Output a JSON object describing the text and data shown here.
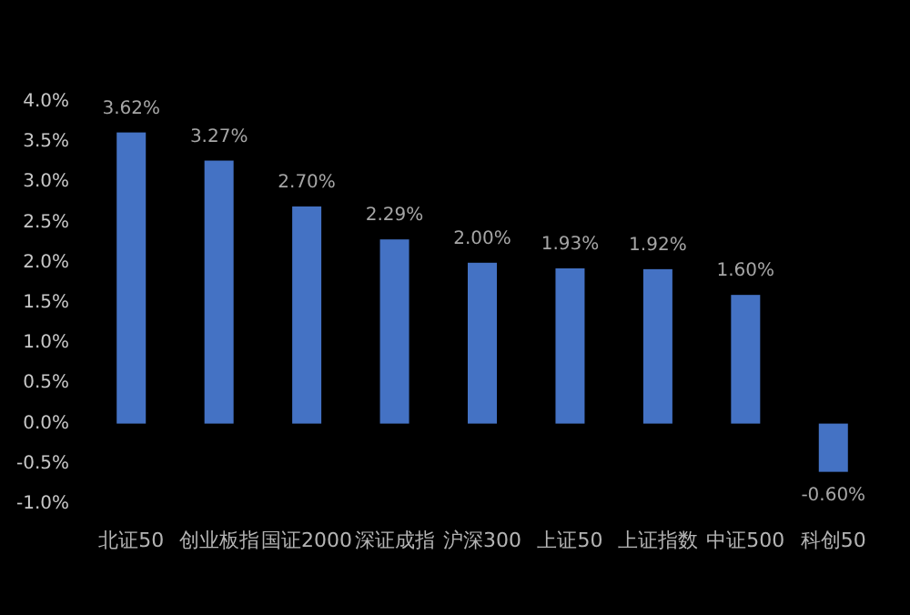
{
  "chart_data": {
    "type": "bar",
    "categories": [
      "北证50",
      "创业板指",
      "国证2000",
      "深证成指",
      "沪深300",
      "上证50",
      "上证指数",
      "中证500",
      "科创50"
    ],
    "values": [
      3.62,
      3.27,
      2.7,
      2.29,
      2.0,
      1.93,
      1.92,
      1.6,
      -0.6
    ],
    "value_labels": [
      "3.62%",
      "3.27%",
      "2.70%",
      "2.29%",
      "2.00%",
      "1.93%",
      "1.92%",
      "1.60%",
      "-0.60%"
    ],
    "color": "#4472c4",
    "ylim": [
      -1.0,
      4.0
    ],
    "yticks": [
      {
        "value": -1.0,
        "label": "-1.0%"
      },
      {
        "value": -0.5,
        "label": "-0.5%"
      },
      {
        "value": 0,
        "label": "0.0%"
      },
      {
        "value": 0.5,
        "label": "0.5%"
      },
      {
        "value": 1.0,
        "label": "1.0%"
      },
      {
        "value": 1.5,
        "label": "1.5%"
      },
      {
        "value": 2.0,
        "label": "2.0%"
      },
      {
        "value": 2.5,
        "label": "2.5%"
      },
      {
        "value": 3.0,
        "label": "3.0%"
      },
      {
        "value": 3.5,
        "label": "3.5%"
      },
      {
        "value": 4.0,
        "label": "4.0%"
      }
    ]
  }
}
